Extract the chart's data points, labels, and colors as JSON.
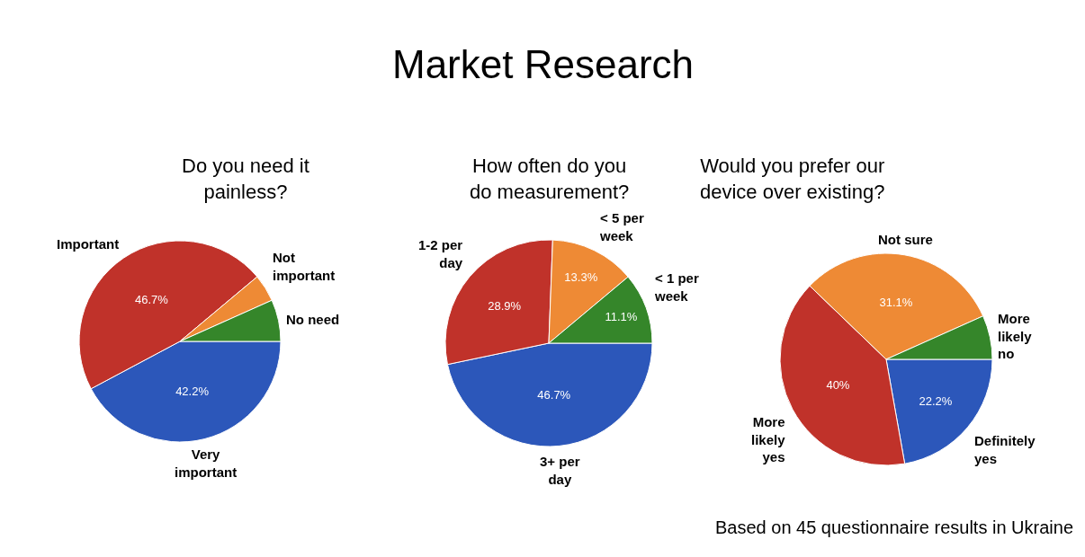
{
  "chart_data": [
    {
      "type": "pie",
      "title": "Do you need it painless?",
      "categories": [
        "Very important",
        "Important",
        "Not important",
        "No need"
      ],
      "values": [
        42.2,
        46.7,
        4.4,
        6.7
      ],
      "colors": [
        "#2c57ba",
        "#c0322a",
        "#ee8a35",
        "#35862a"
      ],
      "value_labels": [
        "42.2%",
        "46.7%",
        null,
        null
      ],
      "annotations": [
        "Market Research",
        "Based on 45 questionnaire results in Ukraine"
      ]
    },
    {
      "type": "pie",
      "title": "How often do you do measurement?",
      "categories": [
        "3+ per day",
        "1-2 per day",
        "< 5 per week",
        "< 1 per week"
      ],
      "values": [
        46.7,
        28.9,
        13.3,
        11.1
      ],
      "colors": [
        "#2c57ba",
        "#c0322a",
        "#ee8a35",
        "#35862a"
      ],
      "value_labels": [
        "46.7%",
        "28.9%",
        "13.3%",
        "11.1%"
      ]
    },
    {
      "type": "pie",
      "title": "Would you prefer our device over existing?",
      "categories": [
        "Definitely yes",
        "More likely yes",
        "Not sure",
        "More likely no"
      ],
      "values": [
        22.2,
        40,
        31.1,
        6.7
      ],
      "colors": [
        "#2c57ba",
        "#c0322a",
        "#ee8a35",
        "#35862a"
      ],
      "value_labels": [
        "22.2%",
        "40%",
        "31.1%",
        null
      ]
    }
  ]
}
